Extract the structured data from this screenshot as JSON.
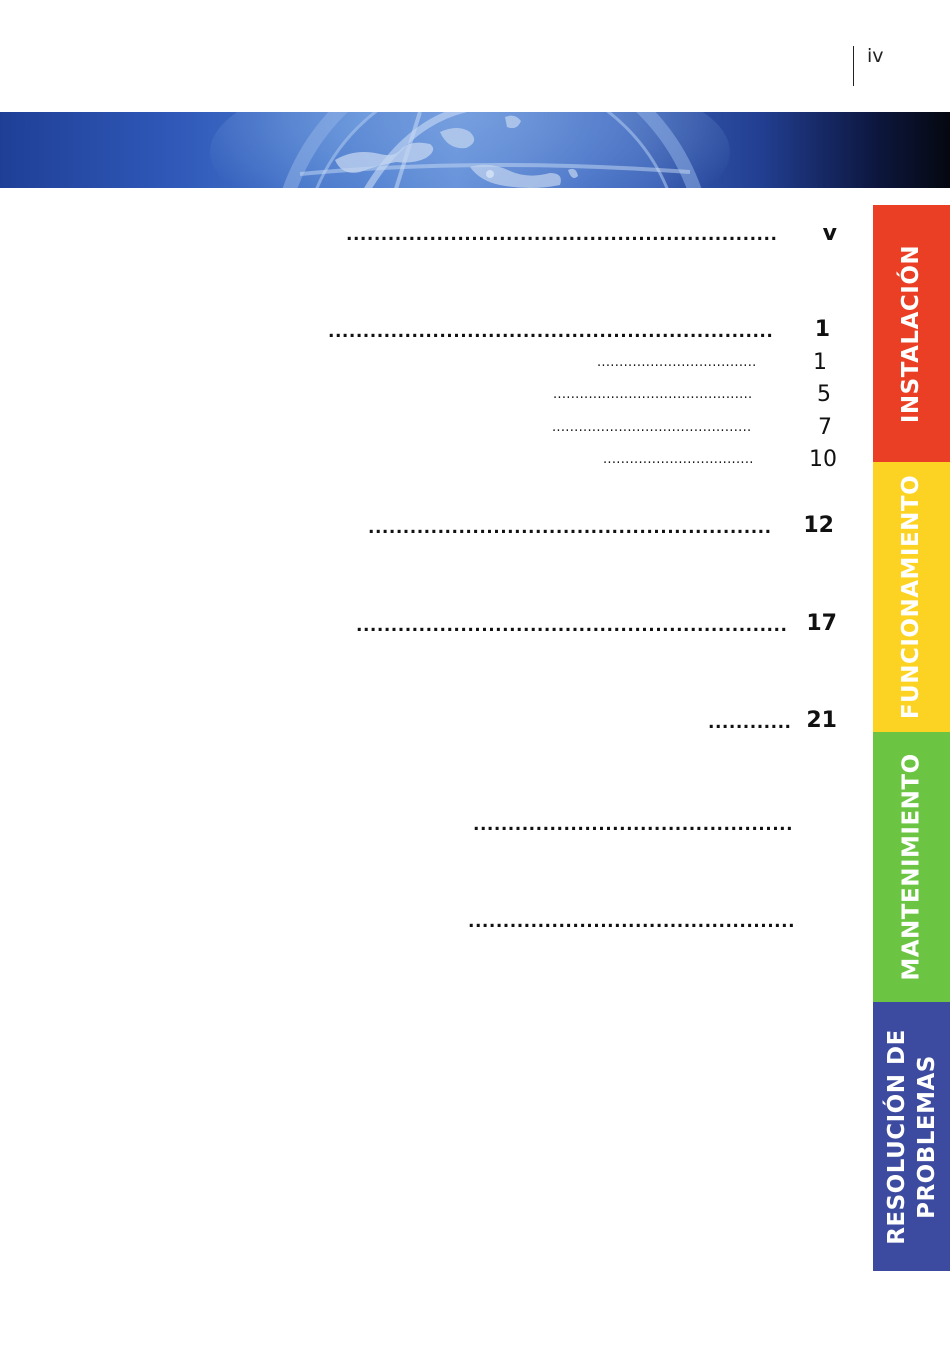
{
  "header": {
    "page_number": "iv"
  },
  "toc": {
    "entries": [
      {
        "page": "v",
        "style": "bold"
      },
      {
        "page": "1",
        "style": "bold"
      },
      {
        "page": "1",
        "style": "normal"
      },
      {
        "page": "5",
        "style": "normal"
      },
      {
        "page": "7",
        "style": "normal"
      },
      {
        "page": "10",
        "style": "normal"
      },
      {
        "page": "12",
        "style": "bold"
      },
      {
        "page": "17",
        "style": "bold"
      },
      {
        "page": "21",
        "style": "bold"
      },
      {
        "page": "",
        "style": "bold"
      },
      {
        "page": "",
        "style": "bold"
      }
    ]
  },
  "tabs": [
    {
      "label": "INSTALACIÓN",
      "color": "#ea3f24"
    },
    {
      "label": "FUNCIONAMIENTO",
      "color": "#fcd322"
    },
    {
      "label": "MANTENIMIENTO",
      "color": "#6bc543"
    },
    {
      "label_line1": "RESOLUCIÓN DE",
      "label_line2": "PROBLEMAS",
      "color": "#3c4aa0"
    }
  ]
}
